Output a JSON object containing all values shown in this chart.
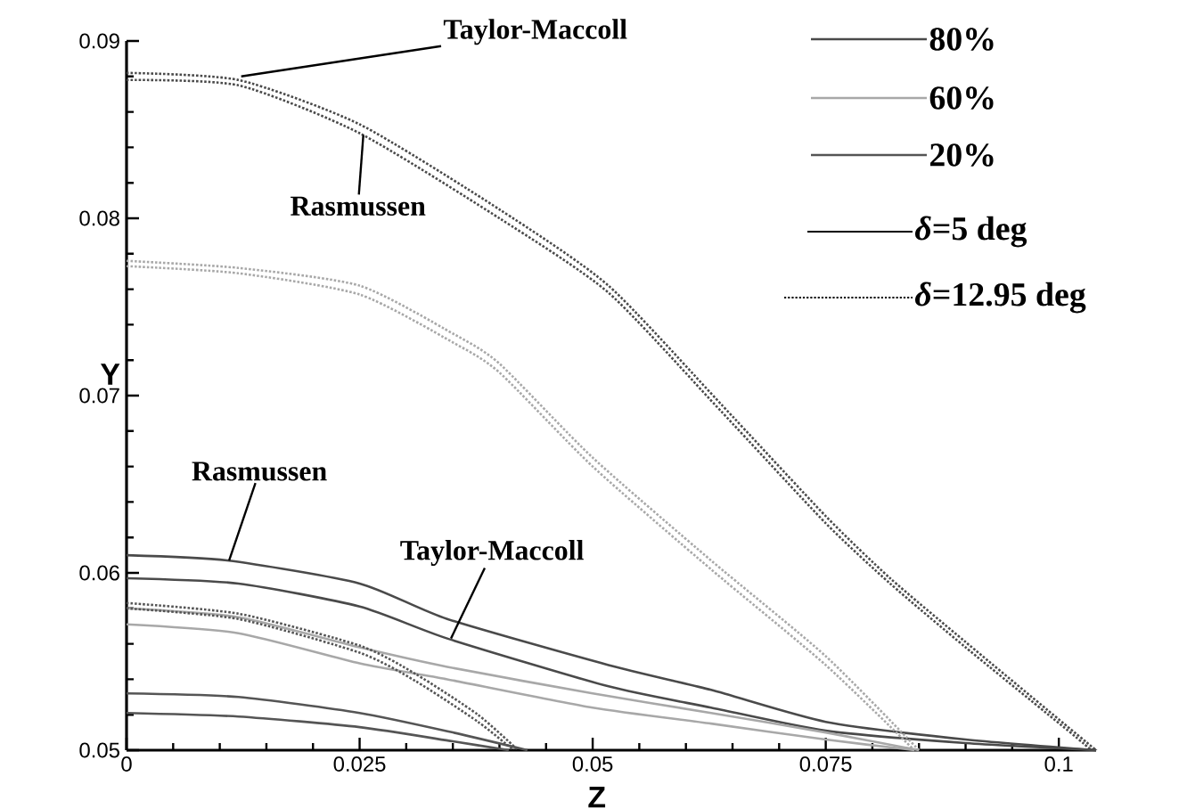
{
  "chart_data": {
    "type": "line",
    "xlabel": "Z",
    "ylabel": "Y",
    "xlim": [
      0,
      0.104
    ],
    "ylim": [
      0.05,
      0.09
    ],
    "xticks": [
      0,
      0.025,
      0.05,
      0.075,
      0.1
    ],
    "yticks": [
      0.05,
      0.06,
      0.07,
      0.08,
      0.09
    ],
    "grid": false,
    "legend": "top right",
    "marker": "none",
    "series": [
      {
        "name": "80%",
        "color": "#4a4a4a",
        "line_style": "solid",
        "x": [
          0,
          0.0108,
          0.025,
          0.0344,
          0.0517,
          0.0627,
          0.075,
          0.09,
          0.104
        ],
        "values": [
          0.061,
          0.0607,
          0.0594,
          0.0574,
          0.0548,
          0.0534,
          0.0516,
          0.0506,
          0.05
        ]
      },
      {
        "color": "#4a4a4a",
        "line_style": "solid",
        "x": [
          0,
          0.012,
          0.025,
          0.0344,
          0.0517,
          0.0627,
          0.075,
          0.09,
          0.104
        ],
        "values": [
          0.0597,
          0.0594,
          0.0581,
          0.0563,
          0.0536,
          0.0524,
          0.0511,
          0.0504,
          0.05
        ]
      },
      {
        "name": "60%",
        "color": "#a8a8a8",
        "line_style": "solid",
        "x": [
          0,
          0.012,
          0.025,
          0.0344,
          0.05,
          0.0627,
          0.075,
          0.085
        ],
        "values": [
          0.058,
          0.0575,
          0.0558,
          0.0547,
          0.0532,
          0.0521,
          0.051,
          0.05
        ]
      },
      {
        "color": "#a8a8a8",
        "line_style": "solid",
        "x": [
          0,
          0.012,
          0.025,
          0.0344,
          0.05,
          0.0627,
          0.075,
          0.0845
        ],
        "values": [
          0.0571,
          0.0566,
          0.0549,
          0.054,
          0.0524,
          0.0515,
          0.0506,
          0.05
        ]
      },
      {
        "name": "20%",
        "color": "#555555",
        "line_style": "solid",
        "x": [
          0,
          0.012,
          0.025,
          0.035,
          0.043
        ],
        "values": [
          0.0532,
          0.053,
          0.0521,
          0.051,
          0.05
        ]
      },
      {
        "color": "#555555",
        "line_style": "solid",
        "x": [
          0,
          0.012,
          0.025,
          0.035,
          0.041
        ],
        "values": [
          0.0521,
          0.0519,
          0.0513,
          0.0505,
          0.05
        ]
      },
      {
        "color": "#4a4a4a",
        "line_style": "dotted",
        "x": [
          0,
          0.012,
          0.025,
          0.04,
          0.0517,
          0.0638,
          0.075,
          0.0819,
          0.09,
          0.101,
          0.104
        ],
        "values": [
          0.0882,
          0.0878,
          0.0853,
          0.0805,
          0.0762,
          0.0695,
          0.0632,
          0.0597,
          0.0561,
          0.0513,
          0.05
        ]
      },
      {
        "color": "#4a4a4a",
        "line_style": "dotted",
        "x": [
          0,
          0.012,
          0.025,
          0.04,
          0.0517,
          0.0638,
          0.075,
          0.0819,
          0.09,
          0.101,
          0.1035
        ],
        "values": [
          0.0878,
          0.0875,
          0.0848,
          0.08,
          0.0758,
          0.0691,
          0.0628,
          0.0594,
          0.0558,
          0.0511,
          0.05
        ]
      },
      {
        "color": "#a8a8a8",
        "line_style": "dotted",
        "x": [
          0,
          0.012,
          0.025,
          0.035,
          0.04,
          0.05,
          0.0627,
          0.075,
          0.085
        ],
        "values": [
          0.0776,
          0.0772,
          0.0762,
          0.0735,
          0.0718,
          0.0665,
          0.0607,
          0.0553,
          0.05
        ]
      },
      {
        "color": "#a8a8a8",
        "line_style": "dotted",
        "x": [
          0,
          0.012,
          0.025,
          0.035,
          0.04,
          0.05,
          0.0627,
          0.075,
          0.0845
        ],
        "values": [
          0.0773,
          0.0769,
          0.0757,
          0.073,
          0.0713,
          0.066,
          0.0602,
          0.0548,
          0.05
        ]
      },
      {
        "color": "#555555",
        "line_style": "dotted",
        "x": [
          0,
          0.012,
          0.025,
          0.031,
          0.0377,
          0.042
        ],
        "values": [
          0.0583,
          0.0577,
          0.0559,
          0.0543,
          0.052,
          0.05
        ]
      },
      {
        "color": "#555555",
        "line_style": "dotted",
        "x": [
          0,
          0.012,
          0.025,
          0.031,
          0.0377,
          0.0415
        ],
        "values": [
          0.058,
          0.0574,
          0.0555,
          0.0539,
          0.0516,
          0.05
        ]
      }
    ],
    "annotations": [
      {
        "text": "Taylor-Maccoll",
        "x": 0.0123,
        "y": 0.088
      },
      {
        "text": "Rasmussen",
        "x": 0.0254,
        "y": 0.0847
      },
      {
        "text": "Rasmussen",
        "x": 0.011,
        "y": 0.0607
      },
      {
        "text": "Taylor-Maccoll",
        "x": 0.0348,
        "y": 0.0563
      },
      "*δ*=5 deg",
      "*δ*=12.95 deg"
    ]
  }
}
